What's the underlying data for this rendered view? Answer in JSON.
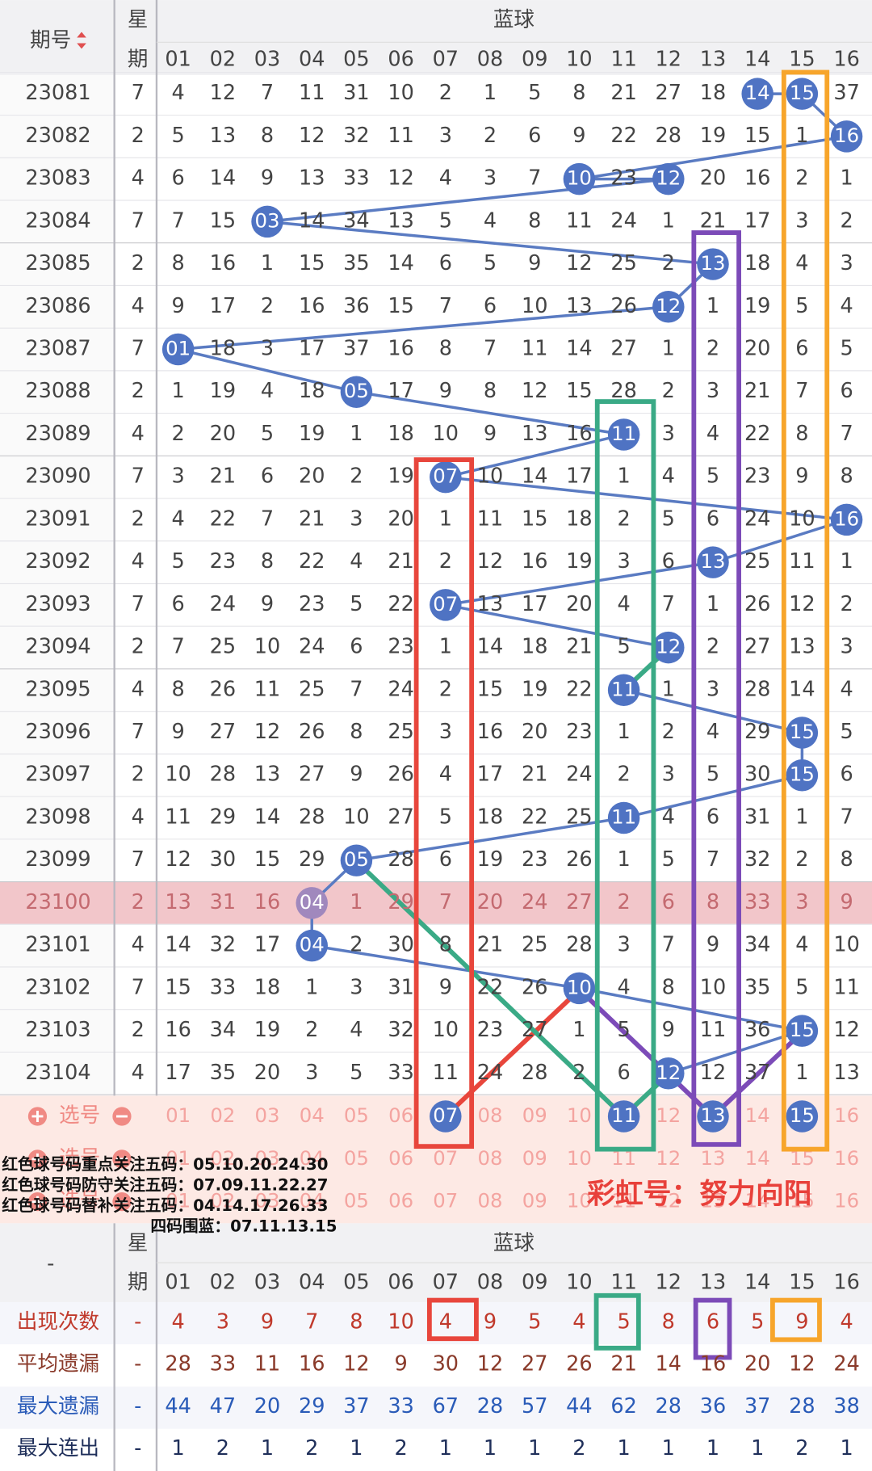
{
  "header": {
    "period": "期号",
    "weekday_top": "星",
    "weekday_bottom": "期",
    "group": "蓝球",
    "columns": [
      "01",
      "02",
      "03",
      "04",
      "05",
      "06",
      "07",
      "08",
      "09",
      "10",
      "11",
      "12",
      "13",
      "14",
      "15",
      "16"
    ]
  },
  "rows": [
    {
      "period": "23081",
      "weekday": "7",
      "cells": [
        "4",
        "12",
        "7",
        "11",
        "31",
        "10",
        "2",
        "1",
        "5",
        "8",
        "21",
        "27",
        "18",
        "14",
        "15",
        "37"
      ]
    },
    {
      "period": "23082",
      "weekday": "2",
      "cells": [
        "5",
        "13",
        "8",
        "12",
        "32",
        "11",
        "3",
        "2",
        "6",
        "9",
        "22",
        "28",
        "19",
        "15",
        "1",
        "16"
      ]
    },
    {
      "period": "23083",
      "weekday": "4",
      "cells": [
        "6",
        "14",
        "9",
        "13",
        "33",
        "12",
        "4",
        "3",
        "7",
        "10",
        "23",
        "12",
        "20",
        "16",
        "2",
        "1"
      ]
    },
    {
      "period": "23084",
      "weekday": "7",
      "cells": [
        "7",
        "15",
        "03",
        "14",
        "34",
        "13",
        "5",
        "4",
        "8",
        "11",
        "24",
        "1",
        "21",
        "17",
        "3",
        "2"
      ]
    },
    {
      "period": "23085",
      "weekday": "2",
      "cells": [
        "8",
        "16",
        "1",
        "15",
        "35",
        "14",
        "6",
        "5",
        "9",
        "12",
        "25",
        "2",
        "13",
        "18",
        "4",
        "3"
      ]
    },
    {
      "period": "23086",
      "weekday": "4",
      "cells": [
        "9",
        "17",
        "2",
        "16",
        "36",
        "15",
        "7",
        "6",
        "10",
        "13",
        "26",
        "12",
        "1",
        "19",
        "5",
        "4"
      ]
    },
    {
      "period": "23087",
      "weekday": "7",
      "cells": [
        "01",
        "18",
        "3",
        "17",
        "37",
        "16",
        "8",
        "7",
        "11",
        "14",
        "27",
        "1",
        "2",
        "20",
        "6",
        "5"
      ]
    },
    {
      "period": "23088",
      "weekday": "2",
      "cells": [
        "1",
        "19",
        "4",
        "18",
        "05",
        "17",
        "9",
        "8",
        "12",
        "15",
        "28",
        "2",
        "3",
        "21",
        "7",
        "6"
      ]
    },
    {
      "period": "23089",
      "weekday": "4",
      "cells": [
        "2",
        "20",
        "5",
        "19",
        "1",
        "18",
        "10",
        "9",
        "13",
        "16",
        "11",
        "3",
        "4",
        "22",
        "8",
        "7"
      ]
    },
    {
      "period": "23090",
      "weekday": "7",
      "cells": [
        "3",
        "21",
        "6",
        "20",
        "2",
        "19",
        "07",
        "10",
        "14",
        "17",
        "1",
        "4",
        "5",
        "23",
        "9",
        "8"
      ]
    },
    {
      "period": "23091",
      "weekday": "2",
      "cells": [
        "4",
        "22",
        "7",
        "21",
        "3",
        "20",
        "1",
        "11",
        "15",
        "18",
        "2",
        "5",
        "6",
        "24",
        "10",
        "16"
      ]
    },
    {
      "period": "23092",
      "weekday": "4",
      "cells": [
        "5",
        "23",
        "8",
        "22",
        "4",
        "21",
        "2",
        "12",
        "16",
        "19",
        "3",
        "6",
        "13",
        "25",
        "11",
        "1"
      ]
    },
    {
      "period": "23093",
      "weekday": "7",
      "cells": [
        "6",
        "24",
        "9",
        "23",
        "5",
        "22",
        "07",
        "13",
        "17",
        "20",
        "4",
        "7",
        "1",
        "26",
        "12",
        "2"
      ]
    },
    {
      "period": "23094",
      "weekday": "2",
      "cells": [
        "7",
        "25",
        "10",
        "24",
        "6",
        "23",
        "1",
        "14",
        "18",
        "21",
        "5",
        "12",
        "2",
        "27",
        "13",
        "3"
      ]
    },
    {
      "period": "23095",
      "weekday": "4",
      "cells": [
        "8",
        "26",
        "11",
        "25",
        "7",
        "24",
        "2",
        "15",
        "19",
        "22",
        "11",
        "1",
        "3",
        "28",
        "14",
        "4"
      ]
    },
    {
      "period": "23096",
      "weekday": "7",
      "cells": [
        "9",
        "27",
        "12",
        "26",
        "8",
        "25",
        "3",
        "16",
        "20",
        "23",
        "1",
        "2",
        "4",
        "29",
        "15",
        "5"
      ]
    },
    {
      "period": "23097",
      "weekday": "2",
      "cells": [
        "10",
        "28",
        "13",
        "27",
        "9",
        "26",
        "4",
        "17",
        "21",
        "24",
        "2",
        "3",
        "5",
        "30",
        "15",
        "6"
      ]
    },
    {
      "period": "23098",
      "weekday": "4",
      "cells": [
        "11",
        "29",
        "14",
        "28",
        "10",
        "27",
        "5",
        "18",
        "22",
        "25",
        "11",
        "4",
        "6",
        "31",
        "1",
        "7"
      ]
    },
    {
      "period": "23099",
      "weekday": "7",
      "cells": [
        "12",
        "30",
        "15",
        "29",
        "05",
        "28",
        "6",
        "19",
        "23",
        "26",
        "1",
        "5",
        "7",
        "32",
        "2",
        "8"
      ]
    },
    {
      "period": "23100",
      "weekday": "2",
      "cells": [
        "13",
        "31",
        "16",
        "04",
        "1",
        "29",
        "7",
        "20",
        "24",
        "27",
        "2",
        "6",
        "8",
        "33",
        "3",
        "9"
      ]
    },
    {
      "period": "23101",
      "weekday": "4",
      "cells": [
        "14",
        "32",
        "17",
        "04",
        "2",
        "30",
        "8",
        "21",
        "25",
        "28",
        "3",
        "7",
        "9",
        "34",
        "4",
        "10"
      ]
    },
    {
      "period": "23102",
      "weekday": "7",
      "cells": [
        "15",
        "33",
        "18",
        "1",
        "3",
        "31",
        "9",
        "22",
        "26",
        "10",
        "4",
        "8",
        "10",
        "35",
        "5",
        "11"
      ]
    },
    {
      "period": "23103",
      "weekday": "2",
      "cells": [
        "16",
        "34",
        "19",
        "2",
        "4",
        "32",
        "10",
        "23",
        "27",
        "1",
        "5",
        "9",
        "11",
        "36",
        "15",
        "12"
      ]
    },
    {
      "period": "23104",
      "weekday": "4",
      "cells": [
        "17",
        "35",
        "20",
        "3",
        "5",
        "33",
        "11",
        "24",
        "28",
        "2",
        "6",
        "12",
        "12",
        "37",
        "1",
        "13"
      ]
    }
  ],
  "selection_rows": [
    {
      "label": "选号",
      "cells": [
        "01",
        "02",
        "03",
        "04",
        "05",
        "06",
        "07",
        "08",
        "09",
        "10",
        "11",
        "12",
        "13",
        "14",
        "15",
        "16"
      ],
      "selected": [
        "07",
        "11",
        "13",
        "15"
      ]
    },
    {
      "label": "选号",
      "cells": [
        "01",
        "02",
        "03",
        "04",
        "05",
        "06",
        "07",
        "08",
        "09",
        "10",
        "11",
        "12",
        "13",
        "14",
        "15",
        "16"
      ]
    },
    {
      "label": "选号",
      "cells": [
        "01",
        "02",
        "03",
        "04",
        "05",
        "06",
        "07",
        "08",
        "09",
        "10",
        "11",
        "12",
        "13",
        "14",
        "15",
        "16"
      ]
    }
  ],
  "notes": [
    "红色球号码重点关注五码：05.10.20.24.30",
    "红色球号码防守关注五码：07.09.11.22.27",
    "红色球号码替补关注五码：04.14.17.26.33",
    "四码围蓝：07.11.13.15"
  ],
  "signature": "彩虹号：努力向阳",
  "footer_header": {
    "first": "-",
    "weekday_top": "星",
    "weekday_bottom": "期",
    "group": "蓝球",
    "columns": [
      "01",
      "02",
      "03",
      "04",
      "05",
      "06",
      "07",
      "08",
      "09",
      "10",
      "11",
      "12",
      "13",
      "14",
      "15",
      "16"
    ]
  },
  "stats": [
    {
      "label": "出现次数",
      "weekday": "-",
      "values": [
        "4",
        "3",
        "9",
        "7",
        "8",
        "10",
        "4",
        "9",
        "5",
        "4",
        "5",
        "8",
        "6",
        "5",
        "9",
        "4"
      ]
    },
    {
      "label": "平均遗漏",
      "weekday": "-",
      "values": [
        "28",
        "33",
        "11",
        "16",
        "12",
        "9",
        "30",
        "12",
        "27",
        "26",
        "21",
        "14",
        "16",
        "20",
        "12",
        "24"
      ]
    },
    {
      "label": "最大遗漏",
      "weekday": "-",
      "values": [
        "44",
        "47",
        "20",
        "29",
        "37",
        "33",
        "67",
        "28",
        "57",
        "44",
        "62",
        "28",
        "36",
        "37",
        "28",
        "38"
      ]
    },
    {
      "label": "最大连出",
      "weekday": "-",
      "values": [
        "1",
        "2",
        "1",
        "2",
        "1",
        "2",
        "1",
        "1",
        "1",
        "2",
        "1",
        "1",
        "1",
        "1",
        "2",
        "1"
      ]
    }
  ]
}
